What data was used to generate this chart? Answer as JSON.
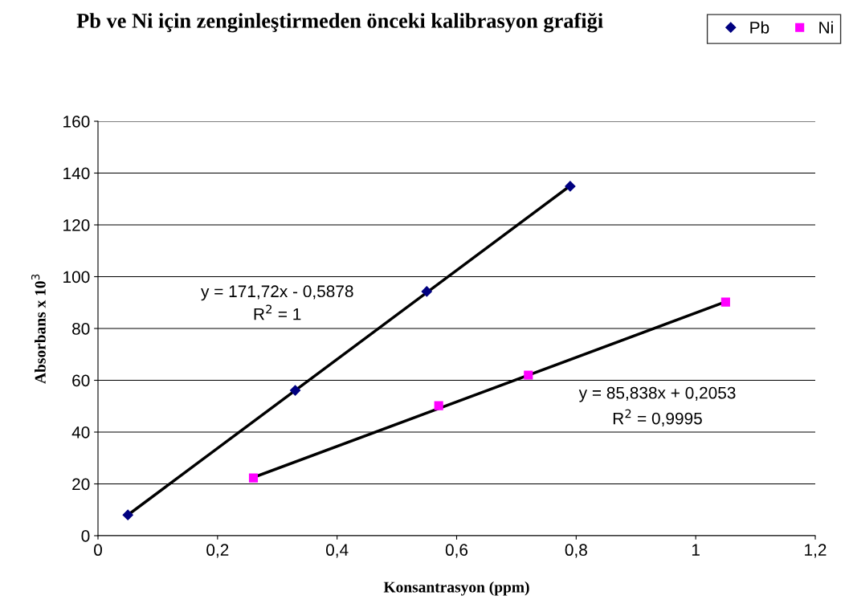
{
  "chart_data": {
    "type": "scatter",
    "title": "Pb ve Ni için zenginleştirmeden önceki kalibrasyon grafiği",
    "xlabel": "Konsantrasyon (ppm)",
    "ylabel": "Absorbans x 10$^{3}$",
    "series": [
      {
        "name": "Pb",
        "type": "scatter",
        "marker": "diamond",
        "color": "#000080",
        "x": [
          0.05,
          0.33,
          0.55,
          0.79
        ],
        "values": [
          8.0,
          56.1,
          94.3,
          134.9
        ]
      },
      {
        "name": "Ni",
        "type": "scatter",
        "marker": "square",
        "color": "#ff00ff",
        "x": [
          0.26,
          0.57,
          0.72,
          1.05
        ],
        "values": [
          22.3,
          50.2,
          62.0,
          90.2
        ]
      },
      {
        "type": "line",
        "marker": "none",
        "color": "#000000",
        "x": [
          0.05,
          0.79
        ],
        "values": [
          8.0,
          135.1
        ]
      },
      {
        "type": "line",
        "marker": "none",
        "color": "#000000",
        "x": [
          0.26,
          1.05
        ],
        "values": [
          22.5,
          90.3
        ]
      }
    ],
    "annotations": [
      "y = 171,72x - 0,5878\nR$^{2}$ = 1",
      "y = 85,838x + 0,2053\nR$^{2}$ = 0,9995"
    ],
    "xlim": [
      0,
      1.2
    ],
    "xticks": [
      0,
      {
        "value": 0.2,
        "label": "0,2"
      },
      {
        "value": 0.4,
        "label": "0,4"
      },
      {
        "value": 0.6,
        "label": "0,6"
      },
      {
        "value": 0.8,
        "label": "0,8"
      },
      1,
      {
        "value": 1.2,
        "label": "1,2"
      }
    ],
    "ylim": [
      0,
      160
    ],
    "yticks": [
      0,
      20,
      40,
      60,
      80,
      100,
      120,
      140,
      160
    ],
    "grid": "y",
    "legend": "top right",
    "line_style": "solid"
  }
}
